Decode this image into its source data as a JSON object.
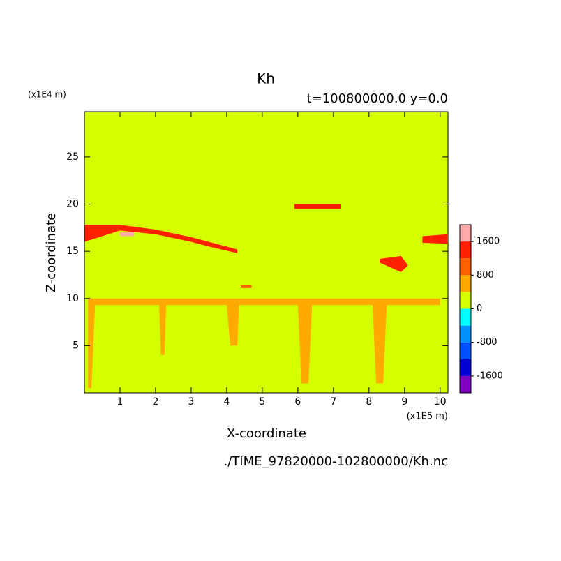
{
  "chart_data": {
    "type": "contour",
    "title": "Kh",
    "subtitle": "t=100800000.0 y=0.0",
    "x_label": "X-coordinate",
    "y_label": "Z-coordinate",
    "x_unit": "(x1E5 m)",
    "y_unit": "(x1E4 m)",
    "source": "./TIME_97820000-102800000/Kh.nc",
    "xlim": [
      0,
      10.22
    ],
    "ylim": [
      0,
      29.8
    ],
    "xticks": [
      1,
      2,
      3,
      4,
      5,
      6,
      7,
      8,
      9,
      10
    ],
    "yticks": [
      5,
      10,
      15,
      20,
      25
    ],
    "levels": [
      -2000,
      -1600,
      -1200,
      -800,
      -400,
      0,
      400,
      800,
      1200,
      1600,
      2000
    ],
    "level_ticks": [
      -1600,
      -800,
      0,
      800,
      1600
    ],
    "colors": [
      "#8000c0",
      "#0000d0",
      "#0050ff",
      "#0090ff",
      "#00ffff",
      "#d4ff00",
      "#ffaa00",
      "#ff6000",
      "#ff2000",
      "#ffaaaa"
    ],
    "regions": [
      {
        "value": 0,
        "x": [
          0,
          10.22,
          10.22,
          0
        ],
        "z": [
          29.8,
          29.8,
          0,
          0
        ]
      },
      {
        "value": 400,
        "x": [
          0.1,
          10,
          10,
          8.5,
          8.4,
          8.2,
          8.1,
          6.4,
          6.3,
          6.1,
          6.0,
          4.35,
          4.3,
          4.1,
          4.0,
          2.3,
          2.25,
          2.15,
          2.1,
          0.3,
          0.2,
          0.1
        ],
        "z": [
          10,
          10,
          9.3,
          9.3,
          1,
          1,
          9.3,
          9.3,
          1,
          1,
          9.3,
          9.3,
          5,
          5,
          9.3,
          9.3,
          4,
          4,
          9.3,
          9.3,
          0.5,
          0.5
        ]
      },
      {
        "value": 1200,
        "x": [
          0,
          1,
          2,
          3,
          3.5,
          4.3,
          4.3,
          3.5,
          3,
          2,
          1,
          0
        ],
        "z": [
          17.8,
          17.8,
          17.3,
          16.5,
          16,
          15.2,
          14.8,
          15.5,
          16,
          16.8,
          17.2,
          16
        ]
      },
      {
        "value": 1600,
        "x": [
          1,
          1.4,
          1.4,
          1
        ],
        "z": [
          17,
          17,
          16.6,
          16.6
        ]
      },
      {
        "value": 1200,
        "x": [
          5.9,
          7.2,
          7.2,
          5.9
        ],
        "z": [
          20,
          20,
          19.5,
          19.5
        ]
      },
      {
        "value": 1200,
        "x": [
          8.3,
          8.9,
          9.1,
          8.9,
          8.3
        ],
        "z": [
          14.2,
          14.5,
          13.5,
          12.8,
          13.8
        ]
      },
      {
        "value": 1200,
        "x": [
          9.5,
          10.2,
          10.2,
          9.5
        ],
        "z": [
          16.6,
          16.8,
          15.8,
          15.9
        ]
      },
      {
        "value": 800,
        "x": [
          4.4,
          4.7,
          4.7,
          4.4
        ],
        "z": [
          11.4,
          11.4,
          11.1,
          11.1
        ]
      }
    ]
  }
}
